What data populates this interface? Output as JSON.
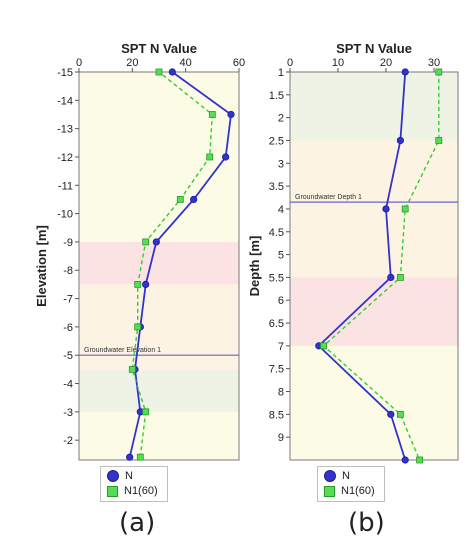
{
  "chart_data": [
    {
      "type": "line",
      "panel_label": "(a)",
      "title": "SPT N Value",
      "xlabel": "",
      "ylabel": "Elevation [m]",
      "xlim": [
        0,
        60
      ],
      "ylim": [
        -15,
        -1.3
      ],
      "x_ticks": [
        0,
        20,
        40,
        60
      ],
      "y_ticks": [
        -2,
        -3,
        -4,
        -5,
        -6,
        -7,
        -8,
        -9,
        -10,
        -11,
        -12,
        -13,
        -14,
        -15
      ],
      "bands": [
        {
          "from": -1.3,
          "to": -3.0,
          "color": "#fbfbe6"
        },
        {
          "from": -3.0,
          "to": -4.5,
          "color": "#eef3e6"
        },
        {
          "from": -4.5,
          "to": -5.0,
          "color": "#fdf3e2"
        },
        {
          "from": -5.0,
          "to": -7.5,
          "color": "#fdf3e2"
        },
        {
          "from": -7.5,
          "to": -9.0,
          "color": "#fbe3e3"
        },
        {
          "from": -9.0,
          "to": -15.0,
          "color": "#fbfbe6"
        }
      ],
      "reference_line": {
        "label": "Groundwater Elevation 1",
        "y": -5.0
      },
      "series": [
        {
          "name": "N",
          "color": "#3333cc",
          "points": [
            [
              19,
              -1.4
            ],
            [
              23,
              -3.0
            ],
            [
              21,
              -4.5
            ],
            [
              23,
              -6.0
            ],
            [
              25,
              -7.5
            ],
            [
              29,
              -9.0
            ],
            [
              43,
              -10.5
            ],
            [
              55,
              -12.0
            ],
            [
              57,
              -13.5
            ],
            [
              35,
              -15.0
            ]
          ]
        },
        {
          "name": "N1(60)",
          "color": "#33cc33",
          "points": [
            [
              23,
              -1.4
            ],
            [
              25,
              -3.0
            ],
            [
              20,
              -4.5
            ],
            [
              22,
              -6.0
            ],
            [
              22,
              -7.5
            ],
            [
              25,
              -9.0
            ],
            [
              38,
              -10.5
            ],
            [
              49,
              -12.0
            ],
            [
              50,
              -13.5
            ],
            [
              30,
              -15.0
            ]
          ]
        }
      ]
    },
    {
      "type": "line",
      "panel_label": "(b)",
      "title": "SPT N Value",
      "xlabel": "",
      "ylabel": "Depth [m]",
      "xlim": [
        0,
        35
      ],
      "ylim": [
        1,
        9.5
      ],
      "x_ticks": [
        0,
        10,
        20,
        30
      ],
      "y_ticks": [
        1,
        1.5,
        2,
        2.5,
        3,
        3.5,
        4,
        4.5,
        5,
        5.5,
        6,
        6.5,
        7,
        7.5,
        8,
        8.5,
        9
      ],
      "bands": [
        {
          "from": 1.0,
          "to": 2.5,
          "color": "#eef3e6"
        },
        {
          "from": 2.5,
          "to": 5.5,
          "color": "#fdf3e2"
        },
        {
          "from": 5.5,
          "to": 7.0,
          "color": "#fbe3e3"
        },
        {
          "from": 7.0,
          "to": 9.5,
          "color": "#fbfbe6"
        }
      ],
      "reference_line": {
        "label": "Groundwater Depth 1",
        "y": 3.85
      },
      "series": [
        {
          "name": "N",
          "color": "#3333cc",
          "points": [
            [
              24,
              1.0
            ],
            [
              23,
              2.5
            ],
            [
              20,
              4.0
            ],
            [
              21,
              5.5
            ],
            [
              6,
              7.0
            ],
            [
              21,
              8.5
            ],
            [
              24,
              9.5
            ]
          ]
        },
        {
          "name": "N1(60)",
          "color": "#33cc33",
          "points": [
            [
              31,
              1.0
            ],
            [
              31,
              2.5
            ],
            [
              24,
              4.0
            ],
            [
              23,
              5.5
            ],
            [
              7,
              7.0
            ],
            [
              23,
              8.5
            ],
            [
              27,
              9.5
            ]
          ]
        }
      ]
    }
  ],
  "legend": {
    "entries": [
      "N",
      "N1(60)"
    ]
  }
}
